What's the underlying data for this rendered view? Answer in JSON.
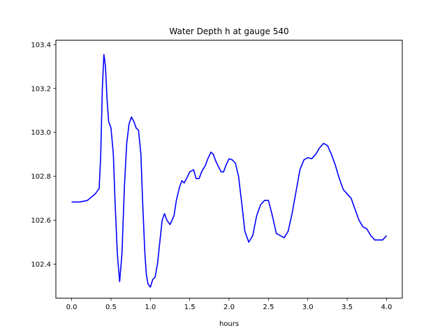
{
  "chart_data": {
    "type": "line",
    "title": "Water Depth h at gauge 540",
    "xlabel": "hours",
    "ylabel": "",
    "xlim": [
      -0.2,
      4.2
    ],
    "ylim": [
      102.245,
      103.42
    ],
    "xticks": [
      0.0,
      0.5,
      1.0,
      1.5,
      2.0,
      2.5,
      3.0,
      3.5,
      4.0
    ],
    "xtick_labels": [
      "0.0",
      "0.5",
      "1.0",
      "1.5",
      "2.0",
      "2.5",
      "3.0",
      "3.5",
      "4.0"
    ],
    "yticks": [
      102.4,
      102.6,
      102.8,
      103.0,
      103.2,
      103.4
    ],
    "ytick_labels": [
      "102.4",
      "102.6",
      "102.8",
      "103.0",
      "103.2",
      "103.4"
    ],
    "grid": false,
    "line_color": "#0000ff",
    "series": [
      {
        "x": [
          0.0,
          0.1,
          0.2,
          0.25,
          0.3,
          0.35,
          0.37,
          0.39,
          0.41,
          0.43,
          0.45,
          0.47,
          0.5,
          0.53,
          0.55,
          0.58,
          0.61,
          0.64,
          0.67,
          0.7,
          0.73,
          0.76,
          0.79,
          0.82,
          0.85,
          0.88,
          0.9,
          0.93,
          0.95,
          0.97,
          1.0,
          1.03,
          1.06,
          1.09,
          1.12,
          1.15,
          1.18,
          1.21,
          1.25,
          1.3,
          1.33,
          1.37,
          1.4,
          1.43,
          1.46,
          1.5,
          1.55,
          1.58,
          1.62,
          1.65,
          1.7,
          1.73,
          1.77,
          1.8,
          1.83,
          1.87,
          1.9,
          1.93,
          1.96,
          2.0,
          2.04,
          2.08,
          2.12,
          2.16,
          2.2,
          2.25,
          2.3,
          2.35,
          2.4,
          2.45,
          2.5,
          2.55,
          2.6,
          2.65,
          2.7,
          2.75,
          2.8,
          2.85,
          2.9,
          2.95,
          3.0,
          3.05,
          3.1,
          3.15,
          3.2,
          3.25,
          3.3,
          3.35,
          3.4,
          3.45,
          3.5,
          3.55,
          3.6,
          3.65,
          3.7,
          3.75,
          3.8,
          3.85,
          3.9,
          3.95,
          4.0
        ],
        "values": [
          102.683,
          102.683,
          102.69,
          102.705,
          102.72,
          102.745,
          102.9,
          103.2,
          103.355,
          103.3,
          103.15,
          103.05,
          103.02,
          102.9,
          102.7,
          102.45,
          102.32,
          102.45,
          102.75,
          102.95,
          103.04,
          103.07,
          103.05,
          103.02,
          103.01,
          102.9,
          102.7,
          102.45,
          102.35,
          102.31,
          102.295,
          102.33,
          102.34,
          102.4,
          102.5,
          102.6,
          102.63,
          102.6,
          102.58,
          102.62,
          102.69,
          102.75,
          102.78,
          102.77,
          102.79,
          102.82,
          102.83,
          102.79,
          102.79,
          102.82,
          102.85,
          102.88,
          102.91,
          102.9,
          102.87,
          102.84,
          102.82,
          102.82,
          102.85,
          102.88,
          102.875,
          102.86,
          102.8,
          102.68,
          102.55,
          102.5,
          102.53,
          102.62,
          102.67,
          102.69,
          102.69,
          102.62,
          102.54,
          102.53,
          102.52,
          102.55,
          102.63,
          102.73,
          102.83,
          102.875,
          102.885,
          102.88,
          102.9,
          102.93,
          102.95,
          102.94,
          102.9,
          102.85,
          102.79,
          102.74,
          102.72,
          102.7,
          102.65,
          102.6,
          102.57,
          102.56,
          102.53,
          102.51,
          102.51,
          102.51,
          102.53
        ]
      }
    ]
  }
}
